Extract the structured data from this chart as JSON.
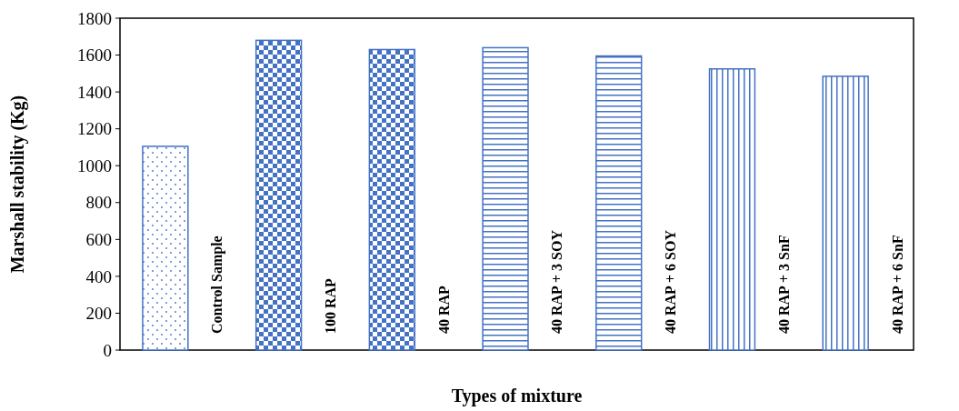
{
  "chart_data": {
    "type": "bar",
    "xlabel": "Types of mixture",
    "ylabel": "Marshall stability (Kg)",
    "categories": [
      "Control Sample",
      "100 RAP",
      "40 RAP",
      "40 RAP + 3 SOY",
      "40 RAP + 6 SOY",
      "40 RAP + 3 SnF",
      "40 RAP + 6 SnF"
    ],
    "values": [
      1105,
      1680,
      1630,
      1640,
      1595,
      1525,
      1485
    ],
    "color": "#4472c4",
    "ylim": [
      0,
      1800
    ],
    "yticks": [
      0,
      200,
      400,
      600,
      800,
      1000,
      1200,
      1400,
      1600,
      1800
    ],
    "grid": false
  }
}
